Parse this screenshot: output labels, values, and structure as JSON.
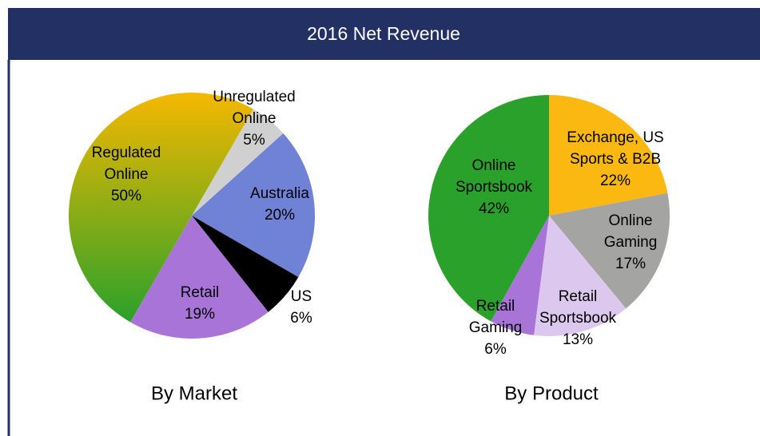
{
  "header": {
    "title": "2016 Net Revenue"
  },
  "chart_data": [
    {
      "type": "pie",
      "title": "By Market",
      "categories": [
        [
          "Unregulated",
          "Online"
        ],
        [
          "Australia"
        ],
        [
          "US"
        ],
        [
          "Retail"
        ],
        [
          "Regulated",
          "Online"
        ]
      ],
      "values": [
        5,
        20,
        6,
        19,
        50
      ],
      "value_labels": [
        "5%",
        "20%",
        "6%",
        "19%",
        "50%"
      ],
      "colors": [
        "#d0d0d0",
        "#6f82d6",
        "#000000",
        "#a874d8",
        "#a9b61e"
      ]
    },
    {
      "type": "pie",
      "title": "By Product",
      "categories": [
        [
          "Exchange, US",
          "Sports & B2B"
        ],
        [
          "Online",
          "Gaming"
        ],
        [
          "Retail",
          "Sportsbook"
        ],
        [
          "Retail",
          "Gaming"
        ],
        [
          "Online",
          "Sportsbook"
        ]
      ],
      "values": [
        22,
        17,
        13,
        6,
        42
      ],
      "value_labels": [
        "22%",
        "17%",
        "13%",
        "6%",
        "42%"
      ],
      "colors": [
        "#fbb810",
        "#a4a4a2",
        "#dcc8ee",
        "#a874d8",
        "#2aa12a"
      ]
    }
  ]
}
